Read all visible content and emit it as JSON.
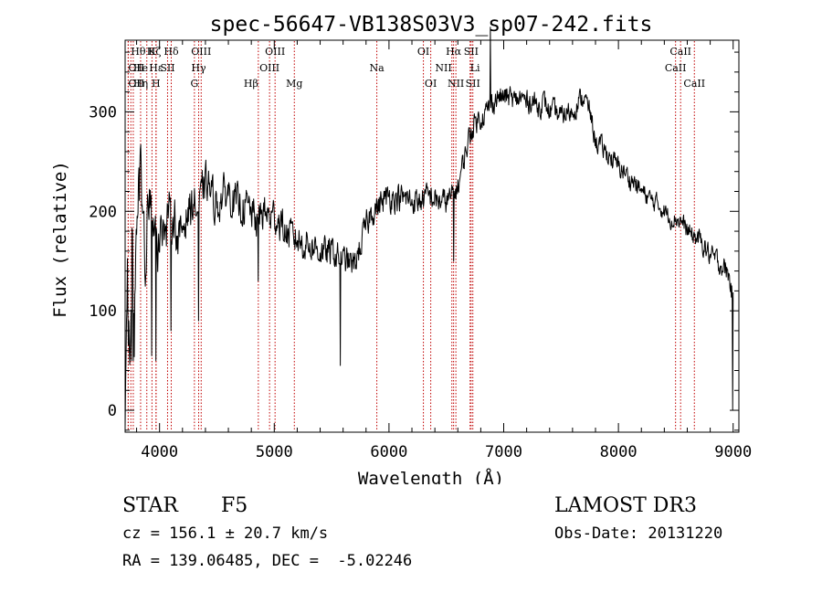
{
  "chart_data": {
    "type": "line",
    "title": "spec-56647-VB138S03V3_sp07-242.fits",
    "xlabel": "Wavelength (Å)",
    "ylabel": "Flux (relative)",
    "xlim": [
      3700,
      9050
    ],
    "ylim": [
      -22,
      372
    ],
    "xticks": [
      4000,
      5000,
      6000,
      7000,
      8000,
      9000
    ],
    "yticks": [
      0,
      100,
      200,
      300
    ],
    "grid": false,
    "line_color": "#000000",
    "marker_color": "#c00000",
    "series": [
      {
        "name": "flux",
        "anchors": [
          [
            3700,
            5
          ],
          [
            3720,
            120
          ],
          [
            3740,
            60
          ],
          [
            3760,
            190
          ],
          [
            3780,
            80
          ],
          [
            3800,
            180
          ],
          [
            3830,
            240
          ],
          [
            3850,
            200
          ],
          [
            3880,
            140
          ],
          [
            3900,
            220
          ],
          [
            3920,
            200
          ],
          [
            3950,
            190
          ],
          [
            3980,
            150
          ],
          [
            4000,
            175
          ],
          [
            4030,
            190
          ],
          [
            4060,
            175
          ],
          [
            4080,
            210
          ],
          [
            4100,
            185
          ],
          [
            4130,
            200
          ],
          [
            4160,
            165
          ],
          [
            4200,
            185
          ],
          [
            4250,
            200
          ],
          [
            4300,
            210
          ],
          [
            4340,
            195
          ],
          [
            4380,
            225
          ],
          [
            4420,
            230
          ],
          [
            4460,
            215
          ],
          [
            4500,
            205
          ],
          [
            4550,
            215
          ],
          [
            4600,
            220
          ],
          [
            4650,
            210
          ],
          [
            4700,
            205
          ],
          [
            4750,
            205
          ],
          [
            4800,
            200
          ],
          [
            4850,
            190
          ],
          [
            4900,
            200
          ],
          [
            4950,
            195
          ],
          [
            5000,
            195
          ],
          [
            5050,
            190
          ],
          [
            5100,
            178
          ],
          [
            5150,
            175
          ],
          [
            5200,
            172
          ],
          [
            5250,
            168
          ],
          [
            5300,
            168
          ],
          [
            5350,
            163
          ],
          [
            5400,
            160
          ],
          [
            5450,
            158
          ],
          [
            5500,
            160
          ],
          [
            5550,
            155
          ],
          [
            5600,
            150
          ],
          [
            5650,
            150
          ],
          [
            5700,
            145
          ],
          [
            5750,
            165
          ],
          [
            5800,
            185
          ],
          [
            5850,
            200
          ],
          [
            5900,
            205
          ],
          [
            5950,
            210
          ],
          [
            6000,
            215
          ],
          [
            6050,
            215
          ],
          [
            6100,
            213
          ],
          [
            6150,
            212
          ],
          [
            6200,
            210
          ],
          [
            6250,
            210
          ],
          [
            6300,
            213
          ],
          [
            6350,
            215
          ],
          [
            6400,
            212
          ],
          [
            6450,
            210
          ],
          [
            6500,
            210
          ],
          [
            6550,
            215
          ],
          [
            6600,
            225
          ],
          [
            6650,
            250
          ],
          [
            6700,
            275
          ],
          [
            6750,
            290
          ],
          [
            6800,
            295
          ],
          [
            6850,
            300
          ],
          [
            6900,
            310
          ],
          [
            6950,
            315
          ],
          [
            7000,
            315
          ],
          [
            7050,
            315
          ],
          [
            7100,
            310
          ],
          [
            7150,
            315
          ],
          [
            7200,
            310
          ],
          [
            7250,
            312
          ],
          [
            7300,
            305
          ],
          [
            7350,
            310
          ],
          [
            7400,
            300
          ],
          [
            7450,
            300
          ],
          [
            7500,
            295
          ],
          [
            7550,
            300
          ],
          [
            7600,
            300
          ],
          [
            7650,
            310
          ],
          [
            7700,
            315
          ],
          [
            7750,
            300
          ],
          [
            7800,
            270
          ],
          [
            7850,
            265
          ],
          [
            7900,
            258
          ],
          [
            7950,
            252
          ],
          [
            8000,
            245
          ],
          [
            8050,
            240
          ],
          [
            8100,
            232
          ],
          [
            8150,
            228
          ],
          [
            8200,
            220
          ],
          [
            8250,
            215
          ],
          [
            8300,
            210
          ],
          [
            8350,
            207
          ],
          [
            8400,
            200
          ],
          [
            8450,
            193
          ],
          [
            8500,
            193
          ],
          [
            8550,
            190
          ],
          [
            8600,
            180
          ],
          [
            8650,
            175
          ],
          [
            8700,
            172
          ],
          [
            8750,
            165
          ],
          [
            8800,
            155
          ],
          [
            8850,
            152
          ],
          [
            8900,
            145
          ],
          [
            8950,
            140
          ],
          [
            8980,
            125
          ],
          [
            9000,
            110
          ]
        ],
        "noise": [
          [
            3700,
            60
          ],
          [
            3900,
            45
          ],
          [
            4000,
            32
          ],
          [
            5000,
            28
          ],
          [
            5600,
            22
          ],
          [
            6000,
            22
          ],
          [
            6700,
            18
          ],
          [
            7000,
            18
          ],
          [
            7800,
            16
          ],
          [
            8500,
            14
          ],
          [
            9000,
            18
          ]
        ],
        "features": [
          [
            3755,
            50
          ],
          [
            3772,
            50
          ],
          [
            3810,
            280
          ],
          [
            3870,
            240
          ],
          [
            3933,
            55
          ],
          [
            3968,
            50
          ],
          [
            4101,
            80
          ],
          [
            4340,
            90
          ],
          [
            4861,
            130
          ],
          [
            5178,
            135
          ],
          [
            5575,
            45
          ],
          [
            6563,
            150
          ],
          [
            6870,
            228
          ],
          [
            6885,
            385
          ],
          [
            8995,
            0
          ]
        ]
      }
    ],
    "lines": [
      {
        "wl": 3727,
        "label": "OII",
        "row": 1,
        "anchor": "start"
      },
      {
        "wl": 3727,
        "label": "OII",
        "row": 2,
        "anchor": "start"
      },
      {
        "wl": 3750,
        "label": "Hθ",
        "row": 0,
        "anchor": "start"
      },
      {
        "wl": 3771,
        "label": "Hη",
        "row": 2,
        "anchor": "start"
      },
      {
        "wl": 3835,
        "label": "He",
        "row": 1,
        "anchor": "middle"
      },
      {
        "wl": 3889,
        "label": "Hζ",
        "row": 0,
        "anchor": "start"
      },
      {
        "wl": 3934,
        "label": "K",
        "row": 0,
        "anchor": "middle"
      },
      {
        "wl": 3969,
        "label": "H",
        "row": 2,
        "anchor": "middle"
      },
      {
        "wl": 3970,
        "label": "Hε",
        "row": 1,
        "anchor": "middle"
      },
      {
        "wl": 4070,
        "label": "SII",
        "row": 1,
        "anchor": "middle"
      },
      {
        "wl": 4102,
        "label": "Hδ",
        "row": 0,
        "anchor": "middle"
      },
      {
        "wl": 4304,
        "label": "G",
        "row": 2,
        "anchor": "middle"
      },
      {
        "wl": 4341,
        "label": "Hγ",
        "row": 1,
        "anchor": "middle"
      },
      {
        "wl": 4363,
        "label": "OIII",
        "row": 0,
        "anchor": "middle"
      },
      {
        "wl": 4861,
        "label": "Hβ",
        "row": 2,
        "anchor": "end"
      },
      {
        "wl": 4959,
        "label": "OIII",
        "row": 1,
        "anchor": "middle"
      },
      {
        "wl": 5007,
        "label": "OIII",
        "row": 0,
        "anchor": "middle"
      },
      {
        "wl": 5175,
        "label": "Mg",
        "row": 2,
        "anchor": "middle"
      },
      {
        "wl": 5894,
        "label": "Na",
        "row": 1,
        "anchor": "middle"
      },
      {
        "wl": 6300,
        "label": "OI",
        "row": 0,
        "anchor": "middle"
      },
      {
        "wl": 6364,
        "label": "OI",
        "row": 2,
        "anchor": "middle"
      },
      {
        "wl": 6548,
        "label": "NII",
        "row": 1,
        "anchor": "end"
      },
      {
        "wl": 6563,
        "label": "Hα",
        "row": 0,
        "anchor": "middle"
      },
      {
        "wl": 6583,
        "label": "NII",
        "row": 2,
        "anchor": "middle"
      },
      {
        "wl": 6707,
        "label": "Li",
        "row": 1,
        "anchor": "start"
      },
      {
        "wl": 6716,
        "label": "SII",
        "row": 0,
        "anchor": "middle"
      },
      {
        "wl": 6731,
        "label": "SII",
        "row": 2,
        "anchor": "middle"
      },
      {
        "wl": 8498,
        "label": "CaII",
        "row": 1,
        "anchor": "middle"
      },
      {
        "wl": 8542,
        "label": "CaII",
        "row": 0,
        "anchor": "middle"
      },
      {
        "wl": 8662,
        "label": "CaII",
        "row": 2,
        "anchor": "middle"
      }
    ]
  },
  "info": {
    "class": "STAR",
    "subclass": "F5",
    "survey": "LAMOST DR3",
    "redshift": "cz = 156.1 ± 20.7 km/s",
    "obs_date": "Obs-Date: 20131220",
    "coords": "RA = 139.06485, DEC =  -5.02246"
  }
}
